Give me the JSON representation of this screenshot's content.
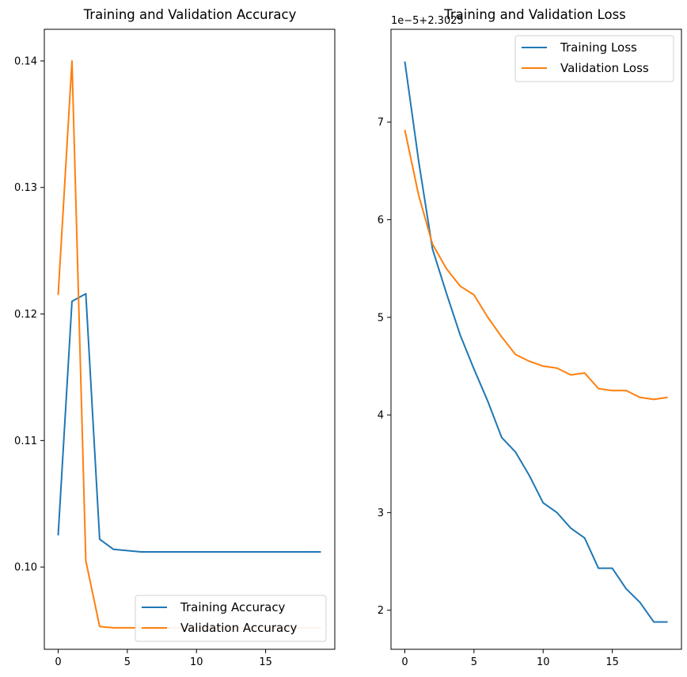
{
  "chart_data": [
    {
      "type": "line",
      "title": "Training and Validation Accuracy",
      "xlabel": "",
      "ylabel": "",
      "xlim": [
        -1,
        20
      ],
      "ylim": [
        0.0935,
        0.1425
      ],
      "xticks": [
        0,
        5,
        10,
        15
      ],
      "yticks": [
        0.1,
        0.11,
        0.12,
        0.13,
        0.14
      ],
      "ytick_labels": [
        "0.10",
        "0.11",
        "0.12",
        "0.13",
        "0.14"
      ],
      "legend_position": "lower-right",
      "grid": false,
      "x": [
        0,
        1,
        2,
        3,
        4,
        5,
        6,
        7,
        8,
        9,
        10,
        11,
        12,
        13,
        14,
        15,
        16,
        17,
        18,
        19
      ],
      "series": [
        {
          "name": "Training Accuracy",
          "color": "#1f77b4",
          "values": [
            0.1025,
            0.121,
            0.1216,
            0.1022,
            0.1014,
            0.1013,
            0.1012,
            0.1012,
            0.1012,
            0.1012,
            0.1012,
            0.1012,
            0.1012,
            0.1012,
            0.1012,
            0.1012,
            0.1012,
            0.1012,
            0.1012,
            0.1012
          ]
        },
        {
          "name": "Validation Accuracy",
          "color": "#ff7f0e",
          "values": [
            0.1215,
            0.14,
            0.1005,
            0.0953,
            0.0952,
            0.0952,
            0.0952,
            0.0952,
            0.0952,
            0.0952,
            0.0952,
            0.0952,
            0.0952,
            0.0952,
            0.0952,
            0.0952,
            0.0952,
            0.0952,
            0.0952,
            0.0952
          ]
        }
      ]
    },
    {
      "type": "line",
      "title": "Training and Validation Loss",
      "xlabel": "",
      "ylabel": "",
      "offset_label": "1e−5+2.3025",
      "xlim": [
        -1,
        20
      ],
      "ylim": [
        1.6,
        7.95
      ],
      "xticks": [
        0,
        5,
        10,
        15
      ],
      "yticks": [
        2,
        3,
        4,
        5,
        6,
        7
      ],
      "ytick_labels": [
        "2",
        "3",
        "4",
        "5",
        "6",
        "7"
      ],
      "legend_position": "upper-right",
      "grid": false,
      "x": [
        0,
        1,
        2,
        3,
        4,
        5,
        6,
        7,
        8,
        9,
        10,
        11,
        12,
        13,
        14,
        15,
        16,
        17,
        18,
        19
      ],
      "series": [
        {
          "name": "Training Loss",
          "color": "#1f77b4",
          "values": [
            7.62,
            6.6,
            5.7,
            5.25,
            4.82,
            4.47,
            4.14,
            3.77,
            3.62,
            3.38,
            3.1,
            3.0,
            2.84,
            2.74,
            2.43,
            2.43,
            2.22,
            2.08,
            1.88,
            1.88
          ]
        },
        {
          "name": "Validation Loss",
          "color": "#ff7f0e",
          "values": [
            6.92,
            6.25,
            5.75,
            5.5,
            5.32,
            5.23,
            5.0,
            4.8,
            4.62,
            4.55,
            4.5,
            4.48,
            4.41,
            4.43,
            4.27,
            4.25,
            4.25,
            4.18,
            4.16,
            4.18
          ]
        }
      ]
    }
  ]
}
